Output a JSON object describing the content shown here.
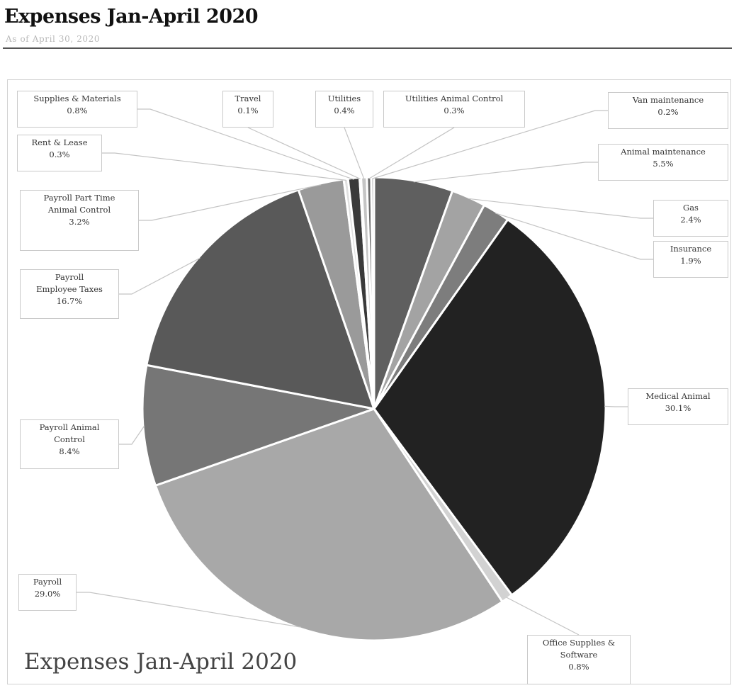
{
  "header": {
    "title": "Expenses Jan-April 2020",
    "subtitle": "As of April 30, 2020"
  },
  "chart_data": {
    "type": "pie",
    "title": "Expenses Jan-April 2020",
    "unit": "%",
    "slices": [
      {
        "name": "Animal maintenance",
        "value": 5.5,
        "label": "5.5%",
        "color": "#5f5f5f"
      },
      {
        "name": "Gas",
        "value": 2.4,
        "label": "2.4%",
        "color": "#a3a3a3"
      },
      {
        "name": "Insurance",
        "value": 1.9,
        "label": "1.9%",
        "color": "#7d7d7d"
      },
      {
        "name": "Medical Animal",
        "value": 30.1,
        "label": "30.1%",
        "color": "#222222"
      },
      {
        "name": "Office Supplies & Software",
        "value": 0.8,
        "label": "0.8%",
        "color": "#d2d2d2"
      },
      {
        "name": "Payroll",
        "value": 29.0,
        "label": "29.0%",
        "color": "#a8a8a8"
      },
      {
        "name": "Payroll Animal Control",
        "value": 8.4,
        "label": "8.4%",
        "color": "#767676"
      },
      {
        "name": "Payroll Employee Taxes",
        "value": 16.7,
        "label": "16.7%",
        "color": "#595959"
      },
      {
        "name": "Payroll Part Time Animal Control",
        "value": 3.2,
        "label": "3.2%",
        "color": "#9a9a9a"
      },
      {
        "name": "Rent & Lease",
        "value": 0.3,
        "label": "0.3%",
        "color": "#e0e0e0"
      },
      {
        "name": "Supplies & Materials",
        "value": 0.8,
        "label": "0.8%",
        "color": "#3a3a3a"
      },
      {
        "name": "Travel",
        "value": 0.1,
        "label": "0.1%",
        "color": "#999999"
      },
      {
        "name": "Utilities",
        "value": 0.4,
        "label": "0.4%",
        "color": "#c5c5c5"
      },
      {
        "name": "Utilities Animal Control",
        "value": 0.3,
        "label": "0.3%",
        "color": "#6c6c6c"
      },
      {
        "name": "Van maintenance",
        "value": 0.2,
        "label": "0.2%",
        "color": "#b5b5b5"
      }
    ],
    "label_lines": [
      [
        "Animal maintenance"
      ],
      [
        "Gas"
      ],
      [
        "Insurance"
      ],
      [
        "Medical Animal"
      ],
      [
        "Office Supplies &",
        "Software"
      ],
      [
        "Payroll"
      ],
      [
        "Payroll Animal",
        "Control"
      ],
      [
        "Payroll",
        "Employee Taxes"
      ],
      [
        "Payroll Part Time",
        "Animal Control"
      ],
      [
        "Rent & Lease"
      ],
      [
        "Supplies & Materials"
      ],
      [
        "Travel"
      ],
      [
        "Utilities"
      ],
      [
        "Utilities Animal Control"
      ],
      [
        "Van maintenance"
      ]
    ]
  }
}
